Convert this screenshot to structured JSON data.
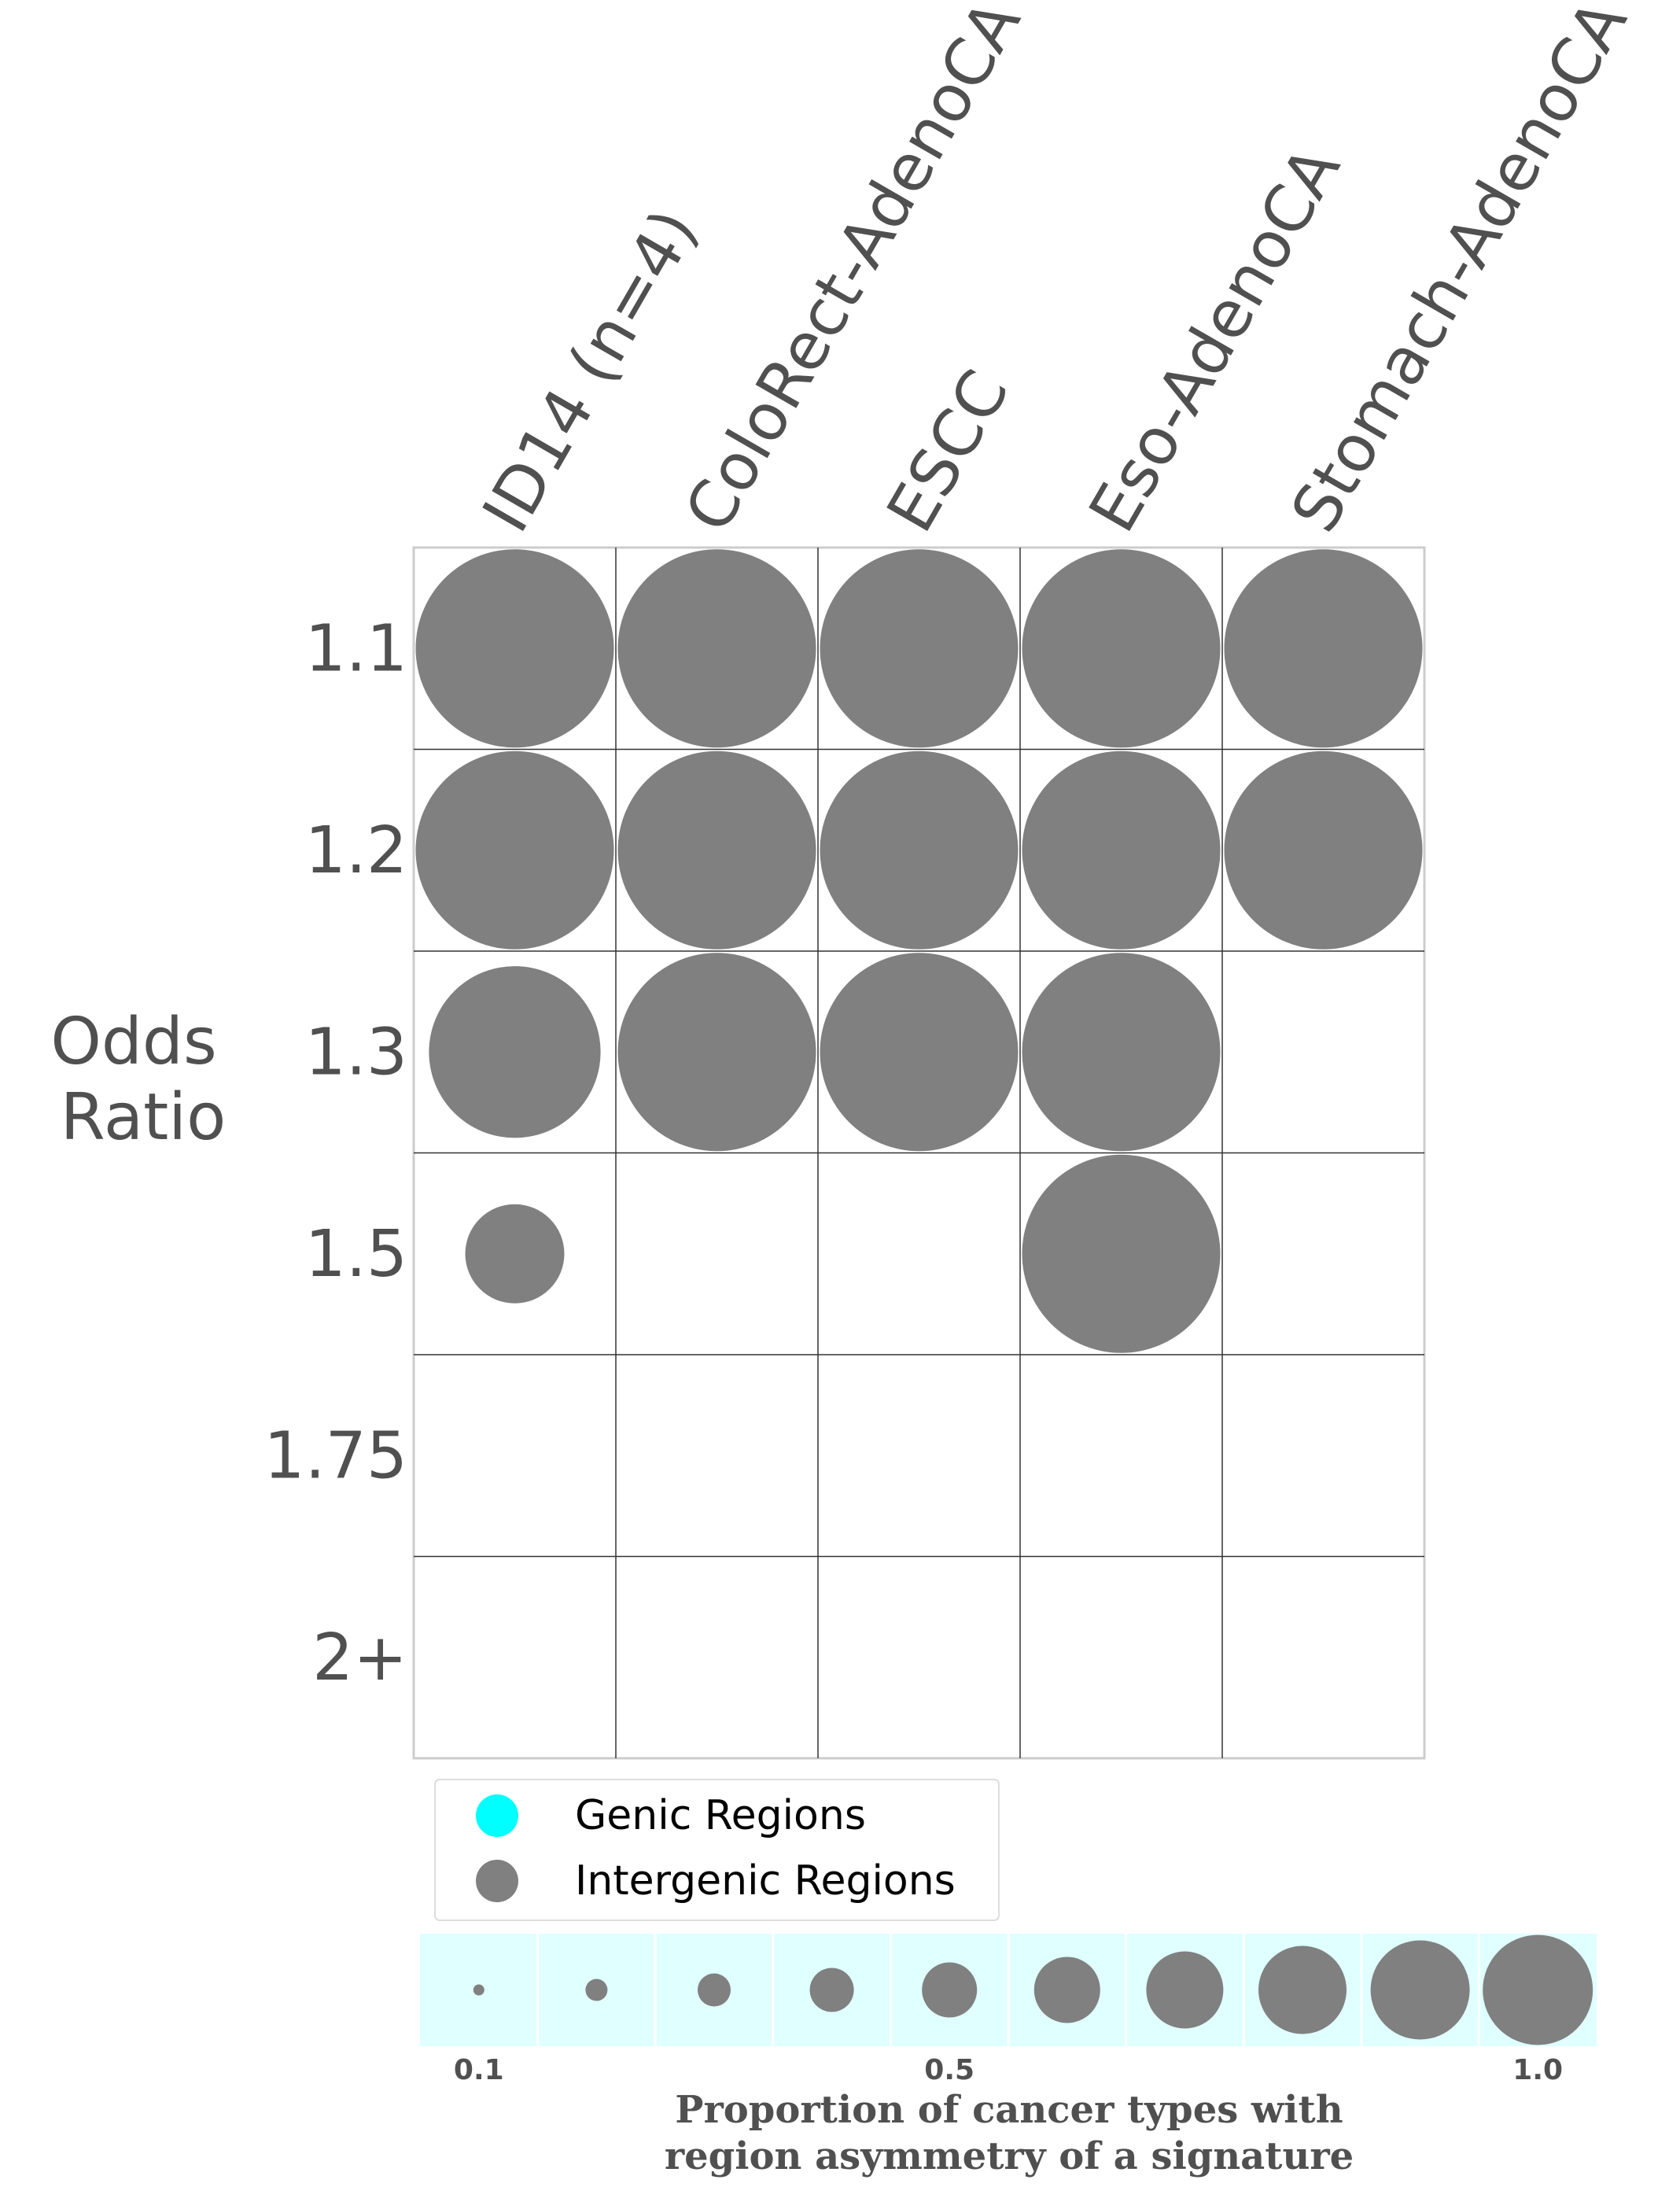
{
  "chart_data": {
    "type": "bubble-grid",
    "y_axis_label_lines": [
      "Odds",
      "Ratio"
    ],
    "x_categories": [
      "ID14 (n=4)",
      "ColoRect-AdenoCA",
      "ESCC",
      "Eso-AdenoCA",
      "Stomach-AdenoCA"
    ],
    "y_categories": [
      "1.1",
      "1.2",
      "1.3",
      "1.5",
      "1.75",
      "2+"
    ],
    "values": [
      [
        1.0,
        1.0,
        1.0,
        1.0,
        1.0
      ],
      [
        1.0,
        1.0,
        1.0,
        1.0,
        1.0
      ],
      [
        0.75,
        1.0,
        1.0,
        1.0,
        null
      ],
      [
        0.25,
        null,
        null,
        1.0,
        null
      ],
      [
        null,
        null,
        null,
        null,
        null
      ],
      [
        null,
        null,
        null,
        null,
        null
      ]
    ],
    "series": [
      {
        "name": "Genic Regions",
        "color": "#00ffff"
      },
      {
        "name": "Intergenic Regions",
        "color": "#808080"
      }
    ],
    "bubble_color": "#808080",
    "size_legend": {
      "values": [
        0.1,
        0.2,
        0.3,
        0.4,
        0.5,
        0.6,
        0.7,
        0.8,
        0.9,
        1.0
      ],
      "tick_labels": [
        "0.1",
        "0.5",
        "1.0"
      ],
      "tick_values": [
        0.1,
        0.5,
        1.0
      ],
      "title_lines": [
        "Proportion of cancer types with",
        "region asymmetry of a signature"
      ],
      "background": "#e0ffff"
    },
    "grid": true,
    "legend_placement": "bottom"
  },
  "colors": {
    "text": "#505050",
    "grid_line": "#333333",
    "frame": "#cccccc"
  }
}
